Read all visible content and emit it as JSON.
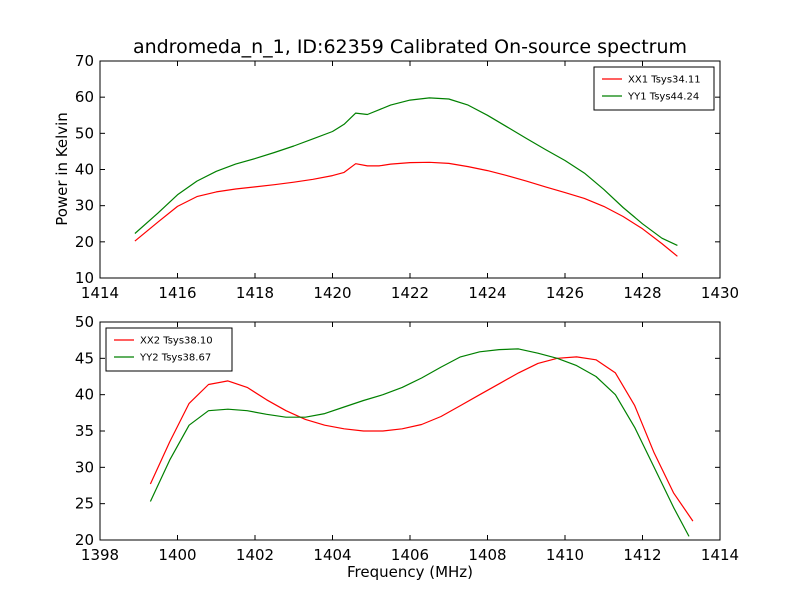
{
  "chart_data": [
    {
      "type": "line",
      "title": "andromeda_n_1, ID:62359 Calibrated On-source spectrum",
      "xlabel": "",
      "ylabel": "Power in Kelvin",
      "xlim": [
        1414,
        1430
      ],
      "ylim": [
        10,
        70
      ],
      "xticks": [
        1414,
        1416,
        1418,
        1420,
        1422,
        1424,
        1426,
        1428,
        1430
      ],
      "yticks": [
        10,
        20,
        30,
        40,
        50,
        60,
        70
      ],
      "grid": false,
      "legend_position": "top-right",
      "series": [
        {
          "name": "XX1 Tsys34.11",
          "color": "#ff0000",
          "x": [
            1414.9,
            1415.5,
            1416.0,
            1416.5,
            1417.0,
            1417.5,
            1418.0,
            1418.5,
            1419.0,
            1419.5,
            1420.0,
            1420.3,
            1420.6,
            1420.9,
            1421.2,
            1421.5,
            1422.0,
            1422.5,
            1423.0,
            1423.5,
            1424.0,
            1424.5,
            1425.0,
            1425.5,
            1426.0,
            1426.5,
            1427.0,
            1427.5,
            1428.0,
            1428.5,
            1428.9
          ],
          "y": [
            20.2,
            25.5,
            29.8,
            32.5,
            33.8,
            34.6,
            35.2,
            35.8,
            36.5,
            37.3,
            38.3,
            39.2,
            41.6,
            41.0,
            41.0,
            41.5,
            41.9,
            42.0,
            41.7,
            40.8,
            39.7,
            38.3,
            36.8,
            35.2,
            33.6,
            32.0,
            29.8,
            27.0,
            23.6,
            19.5,
            16.0
          ]
        },
        {
          "name": "YY1 Tsys44.24",
          "color": "#008000",
          "x": [
            1414.9,
            1415.5,
            1416.0,
            1416.5,
            1417.0,
            1417.5,
            1418.0,
            1418.5,
            1419.0,
            1419.5,
            1420.0,
            1420.3,
            1420.6,
            1420.9,
            1421.2,
            1421.5,
            1422.0,
            1422.5,
            1423.0,
            1423.5,
            1424.0,
            1424.5,
            1425.0,
            1425.5,
            1426.0,
            1426.5,
            1427.0,
            1427.5,
            1428.0,
            1428.5,
            1428.9
          ],
          "y": [
            22.3,
            28.0,
            33.0,
            36.8,
            39.5,
            41.5,
            43.0,
            44.7,
            46.5,
            48.5,
            50.5,
            52.5,
            55.6,
            55.2,
            56.5,
            57.8,
            59.2,
            59.8,
            59.5,
            57.8,
            55.0,
            51.8,
            48.6,
            45.5,
            42.5,
            39.0,
            34.5,
            29.5,
            25.0,
            21.0,
            19.0
          ]
        }
      ]
    },
    {
      "type": "line",
      "title": "",
      "xlabel": "Frequency (MHz)",
      "ylabel": "",
      "xlim": [
        1398,
        1414
      ],
      "ylim": [
        20,
        50
      ],
      "xticks": [
        1398,
        1400,
        1402,
        1404,
        1406,
        1408,
        1410,
        1412,
        1414
      ],
      "yticks": [
        20,
        25,
        30,
        35,
        40,
        45,
        50
      ],
      "grid": false,
      "legend_position": "top-left",
      "series": [
        {
          "name": "XX2 Tsys38.10",
          "color": "#ff0000",
          "x": [
            1399.3,
            1399.8,
            1400.3,
            1400.8,
            1401.3,
            1401.8,
            1402.3,
            1402.8,
            1403.3,
            1403.8,
            1404.3,
            1404.8,
            1405.3,
            1405.8,
            1406.3,
            1406.8,
            1407.3,
            1407.8,
            1408.3,
            1408.8,
            1409.3,
            1409.8,
            1410.3,
            1410.8,
            1411.3,
            1411.8,
            1412.3,
            1412.8,
            1413.3
          ],
          "y": [
            27.7,
            33.5,
            38.8,
            41.4,
            41.9,
            41.0,
            39.3,
            37.8,
            36.6,
            35.8,
            35.3,
            35.0,
            35.0,
            35.3,
            35.9,
            37.0,
            38.5,
            40.0,
            41.5,
            43.0,
            44.3,
            45.0,
            45.2,
            44.8,
            43.0,
            38.5,
            32.0,
            26.5,
            22.6
          ]
        },
        {
          "name": "YY2 Tsys38.67",
          "color": "#008000",
          "x": [
            1399.3,
            1399.8,
            1400.3,
            1400.8,
            1401.3,
            1401.8,
            1402.3,
            1402.8,
            1403.3,
            1403.8,
            1404.3,
            1404.8,
            1405.3,
            1405.8,
            1406.3,
            1406.8,
            1407.3,
            1407.8,
            1408.3,
            1408.8,
            1409.3,
            1409.8,
            1410.3,
            1410.8,
            1411.3,
            1411.8,
            1412.3,
            1412.8,
            1413.2
          ],
          "y": [
            25.3,
            31.0,
            35.8,
            37.8,
            38.0,
            37.8,
            37.3,
            36.9,
            36.9,
            37.4,
            38.3,
            39.2,
            40.0,
            41.0,
            42.3,
            43.8,
            45.2,
            45.9,
            46.2,
            46.3,
            45.7,
            45.0,
            44.0,
            42.5,
            40.0,
            35.5,
            30.0,
            24.5,
            20.5
          ]
        }
      ]
    }
  ]
}
